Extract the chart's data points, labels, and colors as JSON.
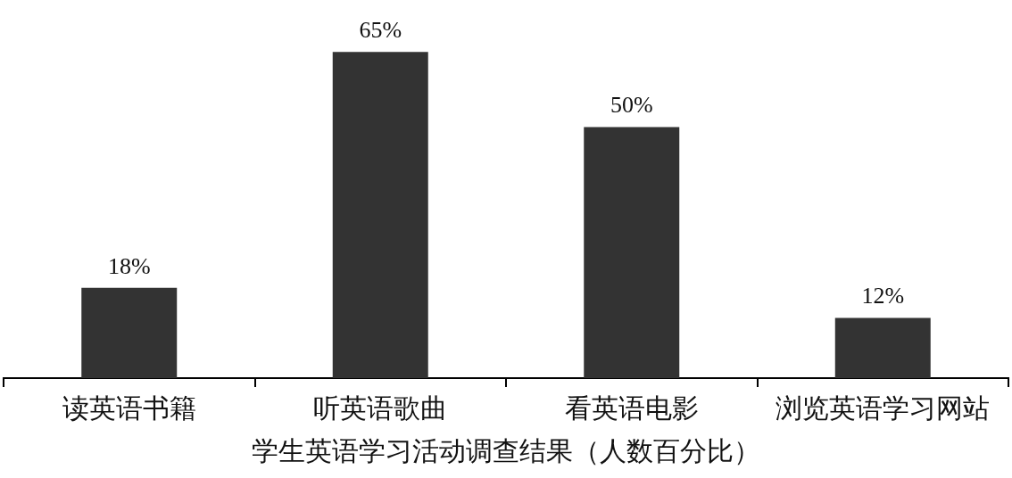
{
  "chart_data": {
    "type": "bar",
    "title": "学生英语学习活动调查结果（人数百分比）",
    "categories": [
      "读英语书籍",
      "听英语歌曲",
      "看英语电影",
      "浏览英语学习网站"
    ],
    "values": [
      18,
      65,
      50,
      12
    ],
    "value_labels": [
      "18%",
      "65%",
      "50%",
      "12%"
    ],
    "color": "#333333"
  }
}
